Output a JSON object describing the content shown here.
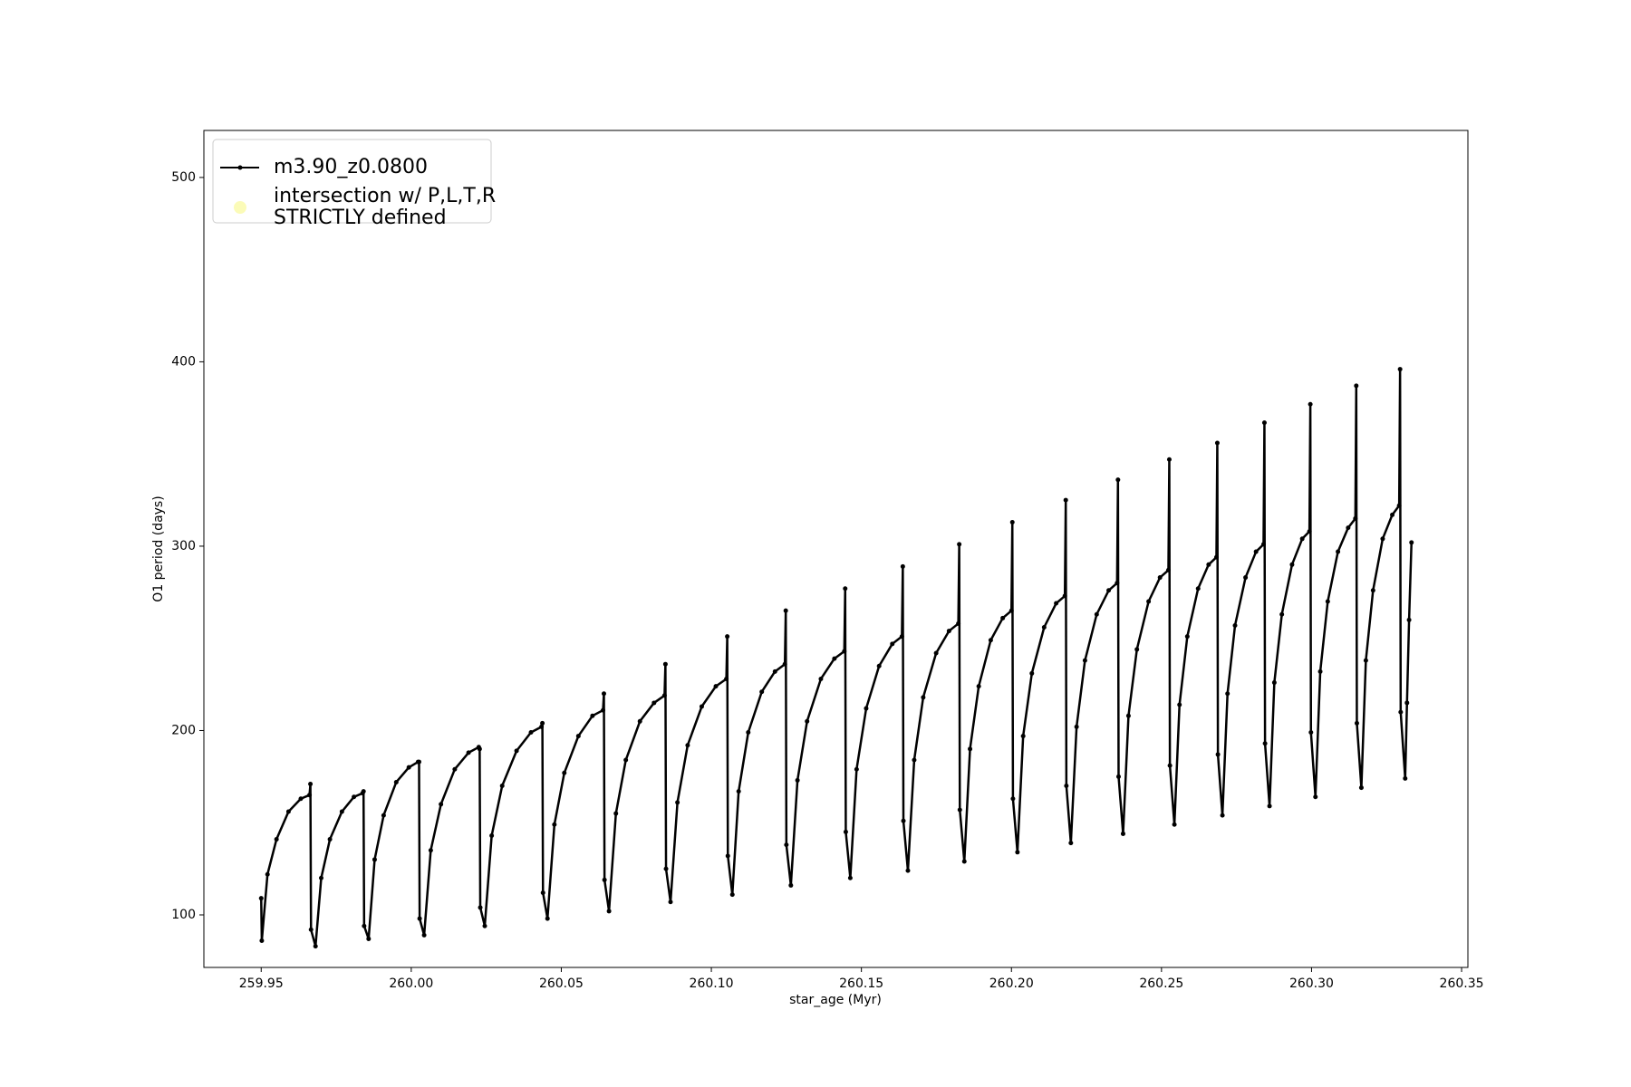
{
  "chart_data": {
    "type": "line",
    "xlabel": "star_age (Myr)",
    "ylabel": "O1 period (days)",
    "xlim": [
      259.9309,
      260.3521
    ],
    "ylim": [
      71.5,
      525.5
    ],
    "xticks": [
      259.95,
      {
        "value": 260,
        "label": "260.00"
      },
      260.05,
      {
        "value": 260.1,
        "label": "260.10"
      },
      260.15,
      {
        "value": 260.2,
        "label": "260.20"
      },
      260.25,
      {
        "value": 260.3,
        "label": "260.30"
      },
      260.35
    ],
    "yticks": [
      100,
      200,
      300,
      400,
      500
    ],
    "grid": false,
    "legend_loc": "upper left",
    "series": [
      {
        "name": "m3.90_z0.0800",
        "color": "#000000",
        "x": [
          259.95,
          259.9502,
          259.9521,
          259.9551,
          259.9591,
          259.9632,
          259.9661,
          259.9664,
          259.9666,
          259.9681,
          259.97,
          259.9729,
          259.9769,
          259.9809,
          259.9838,
          259.9841,
          259.9843,
          259.9858,
          259.9878,
          259.9908,
          259.995,
          259.9992,
          260.0023,
          260.0026,
          260.0028,
          260.0043,
          260.0065,
          260.0099,
          260.0145,
          260.0191,
          260.0225,
          260.0228,
          260.023,
          260.0245,
          260.0268,
          260.0303,
          260.0351,
          260.0399,
          260.0434,
          260.0437,
          260.0439,
          260.0454,
          260.0477,
          260.051,
          260.0557,
          260.0604,
          260.0639,
          260.0642,
          260.0644,
          260.0659,
          260.0682,
          260.0715,
          260.0762,
          260.0809,
          260.0844,
          260.0847,
          260.0849,
          260.0864,
          260.0887,
          260.0921,
          260.0968,
          260.1015,
          260.105,
          260.1053,
          260.1055,
          260.107,
          260.1091,
          260.1123,
          260.1168,
          260.1212,
          260.1245,
          260.1248,
          260.125,
          260.1265,
          260.1287,
          260.1319,
          260.1365,
          260.141,
          260.1443,
          260.1446,
          260.1448,
          260.1463,
          260.1484,
          260.1516,
          260.1559,
          260.1603,
          260.1635,
          260.1638,
          260.164,
          260.1655,
          260.1676,
          260.1706,
          260.1749,
          260.1792,
          260.1823,
          260.1826,
          260.1828,
          260.1843,
          260.1862,
          260.1891,
          260.1931,
          260.1971,
          260.2,
          260.2003,
          260.2005,
          260.202,
          260.2039,
          260.2068,
          260.2109,
          260.2149,
          260.2178,
          260.2181,
          260.2183,
          260.2198,
          260.2217,
          260.2245,
          260.2284,
          260.2324,
          260.2352,
          260.2355,
          260.2357,
          260.2372,
          260.239,
          260.2418,
          260.2457,
          260.2495,
          260.2523,
          260.2526,
          260.2528,
          260.2543,
          260.256,
          260.2586,
          260.2622,
          260.2657,
          260.2683,
          260.2686,
          260.2688,
          260.2703,
          260.272,
          260.2745,
          260.278,
          260.2815,
          260.284,
          260.2843,
          260.2845,
          260.286,
          260.2876,
          260.2901,
          260.2935,
          260.2969,
          260.2993,
          260.2996,
          260.2998,
          260.3013,
          260.3029,
          260.3054,
          260.3088,
          260.3122,
          260.3146,
          260.3149,
          260.3151,
          260.3166,
          260.3181,
          260.3205,
          260.3237,
          260.3269,
          260.3292,
          260.3295,
          260.3297,
          260.3312,
          260.3318,
          260.3325,
          260.3333
        ],
        "values": [
          109,
          86,
          122,
          141,
          156,
          163,
          165,
          171,
          92,
          83,
          120,
          141,
          156,
          164,
          166,
          167,
          94,
          87,
          130,
          154,
          172,
          180,
          183,
          183,
          98,
          89,
          135,
          160,
          179,
          188,
          191,
          190,
          104,
          94,
          143,
          170,
          189,
          199,
          202,
          204,
          112,
          98,
          149,
          177,
          197,
          208,
          211,
          220,
          119,
          102,
          155,
          184,
          205,
          215,
          219,
          236,
          125,
          107,
          161,
          192,
          213,
          224,
          228,
          251,
          132,
          111,
          167,
          199,
          221,
          232,
          236,
          265,
          138,
          116,
          173,
          205,
          228,
          239,
          243,
          277,
          145,
          120,
          179,
          212,
          235,
          247,
          251,
          289,
          151,
          124,
          184,
          218,
          242,
          254,
          258,
          301,
          157,
          129,
          190,
          224,
          249,
          261,
          265,
          313,
          163,
          134,
          197,
          231,
          256,
          269,
          273,
          325,
          170,
          139,
          202,
          238,
          263,
          276,
          280,
          336,
          175,
          144,
          208,
          244,
          270,
          283,
          287,
          347,
          181,
          149,
          214,
          251,
          277,
          290,
          294,
          356,
          187,
          154,
          220,
          257,
          283,
          297,
          301,
          367,
          193,
          159,
          226,
          263,
          290,
          304,
          308,
          377,
          199,
          164,
          232,
          270,
          297,
          310,
          315,
          387,
          204,
          169,
          238,
          276,
          304,
          317,
          322,
          396,
          210,
          174,
          215,
          260,
          302
        ]
      },
      {
        "name": "intersection w/ P,L,T,R\nSTRICTLY defined",
        "color": "#fbfbb8",
        "marker": "circle",
        "x": [],
        "values": []
      }
    ]
  }
}
